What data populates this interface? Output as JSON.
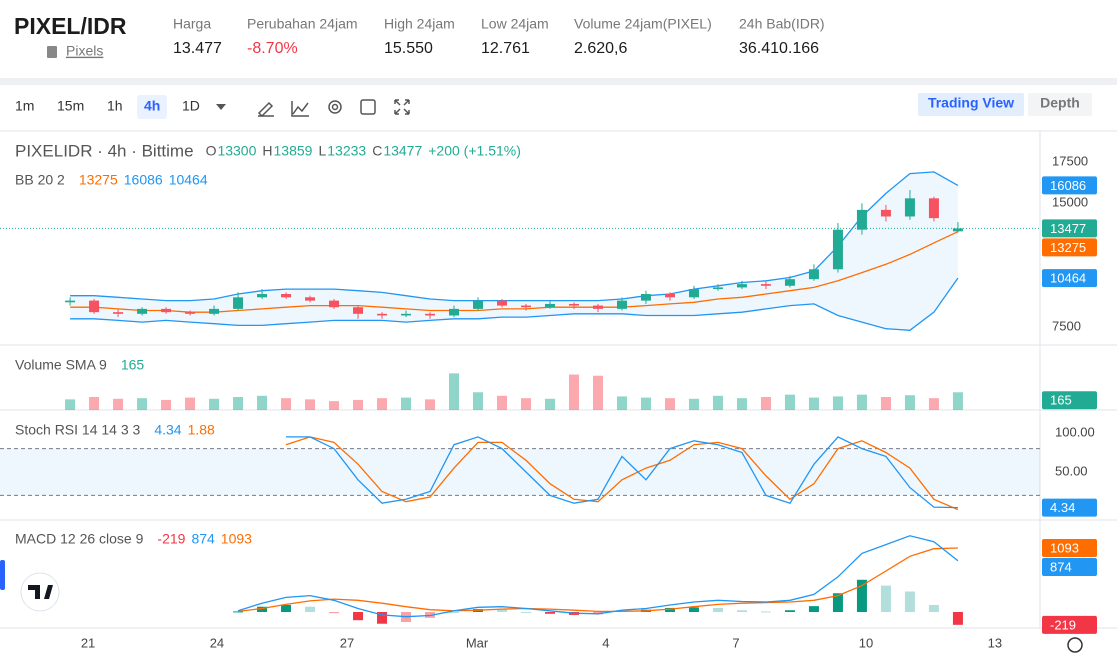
{
  "header": {
    "pair": "PIXEL/IDR",
    "link": "Pixels",
    "stats": [
      {
        "label": "Harga",
        "value": "13.477"
      },
      {
        "label": "Perubahan 24jam",
        "value": "-8.70%",
        "color": "#f23645"
      },
      {
        "label": "High 24jam",
        "value": "15.550"
      },
      {
        "label": "Low 24jam",
        "value": "12.761"
      },
      {
        "label": "Volume 24jam(PIXEL)",
        "value": "2.620,6"
      },
      {
        "label": "24h Bab(IDR)",
        "value": "36.410.166"
      }
    ]
  },
  "toolbar": {
    "intervals": [
      "1m",
      "15m",
      "1h",
      "4h",
      "1D"
    ],
    "active": 3,
    "tabs": [
      "Trading View",
      "Depth"
    ],
    "active_tab": 0
  },
  "chart_data": [
    {
      "type": "candlestick",
      "title": "PIXELIDR · 4h · Bittime",
      "ohlc_labels": [
        "O",
        "H",
        "L",
        "C"
      ],
      "change": "+200 (+1.51%)",
      "indicator": "BB 20 2",
      "x": [
        0,
        1,
        2,
        3,
        4,
        5,
        6,
        7,
        8,
        9,
        10,
        11,
        12,
        13,
        14,
        15,
        16,
        17,
        18,
        19,
        20,
        21,
        22,
        23,
        24,
        25,
        26,
        27,
        28,
        29,
        30,
        31,
        32,
        33,
        34,
        35,
        36,
        37
      ],
      "open": [
        9000,
        9100,
        8400,
        8300,
        8600,
        8400,
        8300,
        8600,
        9300,
        9500,
        9300,
        9100,
        8700,
        8300,
        8200,
        8300,
        8200,
        8600,
        9100,
        8800,
        8700,
        8900,
        8800,
        8600,
        9100,
        9500,
        9300,
        9800,
        9900,
        10100,
        10000,
        10400,
        11000,
        13400,
        14600,
        14200,
        15300,
        13300
      ],
      "high": [
        9300,
        9200,
        8600,
        8700,
        8700,
        8500,
        8800,
        9600,
        9800,
        9600,
        9400,
        9200,
        8800,
        8400,
        8500,
        8400,
        8800,
        9300,
        9200,
        8900,
        9100,
        9000,
        8900,
        9300,
        9700,
        9600,
        10000,
        10100,
        10300,
        10300,
        10600,
        11300,
        13800,
        15000,
        14900,
        15800,
        15400,
        13859
      ],
      "low": [
        8800,
        8300,
        8100,
        8200,
        8300,
        8200,
        8200,
        8500,
        9200,
        9200,
        9000,
        8600,
        8000,
        8000,
        8100,
        8000,
        8100,
        8500,
        8700,
        8500,
        8600,
        8600,
        8400,
        8500,
        8900,
        9100,
        9200,
        9700,
        9800,
        9800,
        9900,
        10300,
        10800,
        13100,
        13900,
        14000,
        13900,
        13233
      ],
      "close": [
        9100,
        8400,
        8300,
        8600,
        8400,
        8300,
        8600,
        9300,
        9500,
        9300,
        9100,
        8700,
        8300,
        8200,
        8300,
        8200,
        8600,
        9100,
        8800,
        8700,
        8900,
        8800,
        8600,
        9100,
        9500,
        9300,
        9800,
        9900,
        10100,
        10000,
        10400,
        11000,
        13400,
        14600,
        14200,
        15300,
        14100,
        13477
      ],
      "bb_upper": [
        9400,
        9400,
        9300,
        9200,
        9100,
        9100,
        9200,
        9500,
        9700,
        9800,
        9800,
        9800,
        9700,
        9600,
        9400,
        9200,
        9100,
        9100,
        9100,
        9100,
        9100,
        9100,
        9100,
        9200,
        9400,
        9500,
        9800,
        10000,
        10200,
        10300,
        10500,
        10900,
        12400,
        14200,
        15600,
        16800,
        16900,
        16086
      ],
      "bb_middle": [
        8700,
        8700,
        8600,
        8500,
        8500,
        8400,
        8400,
        8500,
        8600,
        8700,
        8800,
        8800,
        8800,
        8700,
        8600,
        8500,
        8500,
        8500,
        8600,
        8600,
        8700,
        8700,
        8700,
        8700,
        8800,
        8900,
        9000,
        9200,
        9300,
        9500,
        9700,
        9900,
        10300,
        10800,
        11300,
        11900,
        12600,
        13275
      ],
      "bb_lower": [
        8000,
        8000,
        7900,
        7800,
        7900,
        7800,
        7700,
        7600,
        7600,
        7700,
        7800,
        7900,
        7900,
        7900,
        7800,
        7900,
        8000,
        8000,
        8100,
        8100,
        8200,
        8300,
        8300,
        8300,
        8200,
        8200,
        8200,
        8300,
        8400,
        8600,
        8800,
        8900,
        8200,
        7800,
        7400,
        7300,
        8400,
        10464
      ],
      "colors": {
        "up": "#22ab94",
        "down": "#f7525f",
        "bb_upper": "#2196f3",
        "bb_middle": "#ff6d00",
        "bb_lower": "#2196f3",
        "fill": "#2196f3"
      },
      "xlim": [
        -2.92,
        40.42
      ],
      "xticks": [
        {
          "value": 0.75,
          "label": "21"
        },
        {
          "value": 6.12,
          "label": "24"
        },
        {
          "value": 11.54,
          "label": "27"
        },
        {
          "value": 16.96,
          "label": "Mar"
        },
        {
          "value": 22.33,
          "label": "4"
        },
        {
          "value": 27.75,
          "label": "7"
        },
        {
          "value": 33.17,
          "label": "10"
        },
        {
          "value": 38.54,
          "label": "13"
        }
      ],
      "ylim": [
        6410,
        19260
      ],
      "yticks": [
        7500,
        15000,
        17500
      ]
    },
    {
      "type": "bar",
      "title": "Volume SMA 9",
      "sma": 165,
      "color": "#22ab94",
      "values": [
        180,
        220,
        190,
        200,
        170,
        210,
        190,
        220,
        240,
        200,
        180,
        150,
        170,
        200,
        210,
        180,
        620,
        300,
        240,
        200,
        190,
        600,
        580,
        230,
        210,
        200,
        190,
        240,
        200,
        220,
        260,
        210,
        230,
        260,
        220,
        250,
        200,
        300
      ],
      "ylim": [
        0,
        1100
      ]
    },
    {
      "type": "stoch",
      "title": "Stoch RSI 14 14 3 3",
      "colors": {
        "k": "#2196f3",
        "d": "#ff6d00"
      },
      "k": [
        null,
        null,
        null,
        null,
        null,
        null,
        null,
        null,
        null,
        95,
        95,
        80,
        40,
        10,
        15,
        25,
        85,
        95,
        80,
        50,
        20,
        10,
        15,
        70,
        40,
        80,
        90,
        85,
        75,
        20,
        10,
        60,
        95,
        80,
        70,
        30,
        5,
        4.34
      ],
      "d": [
        null,
        null,
        null,
        null,
        null,
        null,
        null,
        null,
        null,
        85,
        95,
        88,
        60,
        25,
        12,
        18,
        55,
        88,
        88,
        65,
        35,
        15,
        12,
        40,
        55,
        65,
        85,
        88,
        80,
        45,
        15,
        35,
        80,
        90,
        75,
        55,
        15,
        1.88
      ],
      "bands": [
        20,
        80
      ],
      "ylim": [
        -11.5,
        129.5
      ],
      "yticks": [
        {
          "value": 50,
          "label": "50.00"
        },
        {
          "value": 100,
          "label": "100.00"
        }
      ]
    },
    {
      "type": "macd",
      "title": "MACD 12 26 close 9",
      "colors": {
        "macd": "#2196f3",
        "signal": "#ff6d00",
        "hist": "#f23645"
      },
      "macd": [
        null,
        null,
        null,
        null,
        null,
        null,
        null,
        20,
        150,
        250,
        280,
        200,
        60,
        -50,
        -80,
        -60,
        20,
        80,
        90,
        60,
        20,
        -20,
        -30,
        30,
        60,
        120,
        170,
        200,
        180,
        170,
        200,
        300,
        600,
        1000,
        1150,
        1300,
        1200,
        874
      ],
      "signal": [
        null,
        null,
        null,
        null,
        null,
        null,
        null,
        10,
        60,
        130,
        190,
        220,
        200,
        150,
        90,
        40,
        20,
        30,
        50,
        60,
        50,
        30,
        10,
        10,
        20,
        50,
        90,
        130,
        150,
        160,
        170,
        200,
        280,
        450,
        700,
        950,
        1080,
        1093
      ],
      "histogram": [
        null,
        null,
        null,
        null,
        null,
        null,
        null,
        10,
        90,
        120,
        90,
        -20,
        -140,
        -200,
        -170,
        -100,
        0,
        50,
        40,
        0,
        -30,
        -50,
        -40,
        20,
        40,
        70,
        80,
        70,
        30,
        10,
        30,
        100,
        320,
        550,
        450,
        350,
        120,
        -219
      ],
      "ylim": [
        -273,
        1570
      ]
    }
  ]
}
